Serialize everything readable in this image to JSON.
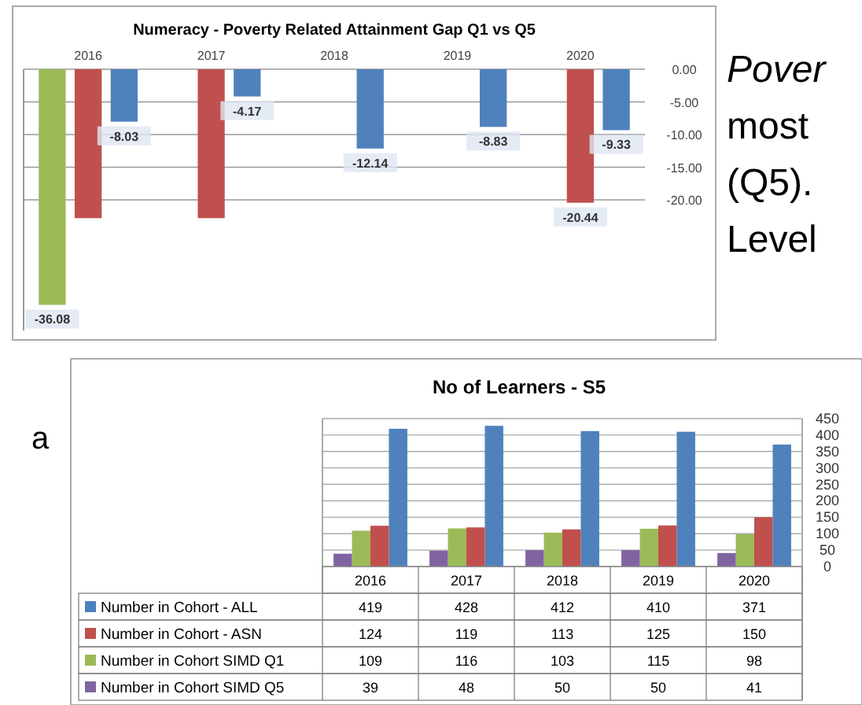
{
  "chart_data": [
    {
      "type": "bar",
      "title": "Numeracy - Poverty Related Attainment Gap Q1 vs Q5",
      "categories": [
        "2016",
        "2017",
        "2018",
        "2019",
        "2020"
      ],
      "series": [
        {
          "color": "#9bbb59",
          "values": [
            -36.08,
            null,
            null,
            null,
            null
          ],
          "value_labels": [
            "-36.08",
            null,
            null,
            null,
            null
          ]
        },
        {
          "color": "#c0504d",
          "values": [
            -22.8,
            -22.8,
            null,
            null,
            -20.44
          ],
          "value_labels": [
            null,
            null,
            null,
            null,
            "-20.44"
          ]
        },
        {
          "color": "#4f81bd",
          "values": [
            -8.03,
            -4.17,
            -12.14,
            -8.83,
            -9.33
          ],
          "value_labels": [
            "-8.03",
            "-4.17",
            "-12.14",
            "-8.83",
            "-9.33"
          ]
        }
      ],
      "ylim": [
        -40,
        0
      ],
      "yticks": [
        {
          "value": 0,
          "label": "0.00"
        },
        {
          "value": -5,
          "label": "-5.00"
        },
        {
          "value": -10,
          "label": "-10.00"
        },
        {
          "value": -15,
          "label": "-15.00"
        },
        {
          "value": -20,
          "label": "-20.00"
        }
      ],
      "grid": true,
      "annotations": [
        "Pover",
        "most",
        "(Q5).",
        "Level",
        "a"
      ]
    },
    {
      "type": "bar",
      "title": "No of Learners - S5",
      "categories": [
        "2016",
        "2017",
        "2018",
        "2019",
        "2020"
      ],
      "series": [
        {
          "name": "Number in Cohort - ALL",
          "color": "#4f81bd",
          "values": [
            419,
            428,
            412,
            410,
            371
          ]
        },
        {
          "name": "Number in Cohort - ASN",
          "color": "#c0504d",
          "values": [
            124,
            119,
            113,
            125,
            150
          ]
        },
        {
          "name": "Number in Cohort SIMD Q1",
          "color": "#9bbb59",
          "values": [
            109,
            116,
            103,
            115,
            98
          ]
        },
        {
          "name": "Number in Cohort SIMD Q5",
          "color": "#8064a2",
          "values": [
            39,
            48,
            50,
            50,
            41
          ]
        }
      ],
      "ylim": [
        0,
        450
      ],
      "yticks": [
        0,
        50,
        100,
        150,
        200,
        250,
        300,
        350,
        400,
        450
      ],
      "grid": true,
      "data_labels": true,
      "legend": "bottom left"
    }
  ]
}
